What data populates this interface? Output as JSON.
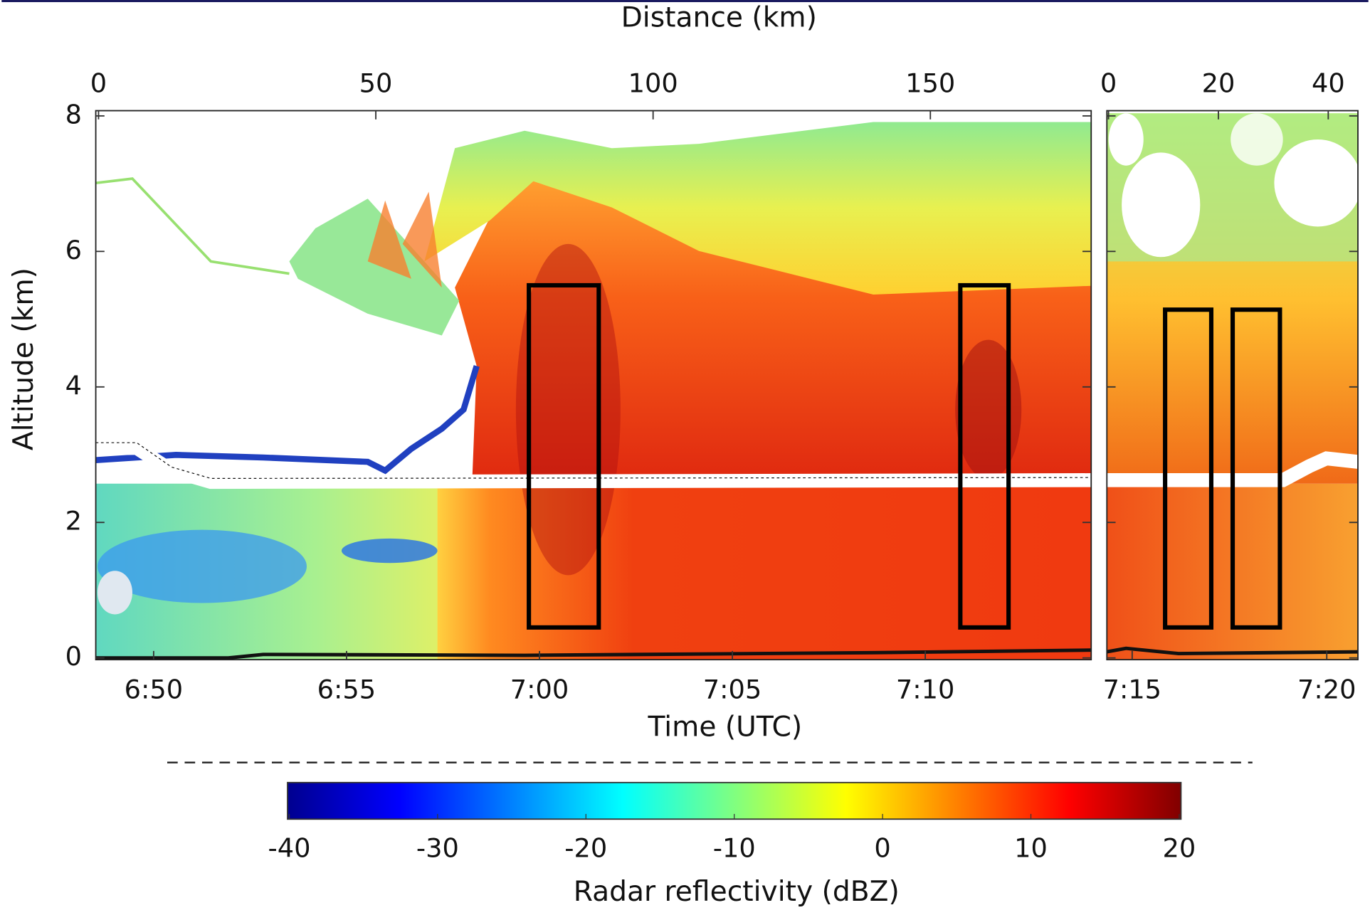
{
  "chart_data": {
    "type": "radar-curtain",
    "x2_label": "Distance (km)",
    "x_label": "Time (UTC)",
    "y_label": "Altitude (km)",
    "ylim": [
      0,
      8
    ],
    "yticks": [
      0,
      2,
      4,
      6,
      8
    ],
    "panels": [
      {
        "distance_lim": [
          -0.5,
          179
        ],
        "distance_ticks": [
          0,
          50,
          100,
          150
        ],
        "time_lim": [
          408.5,
          434.3
        ],
        "time_ticks": [
          {
            "value": 410,
            "label": "6:50"
          },
          {
            "value": 415,
            "label": "6:55"
          },
          {
            "value": 420,
            "label": "7:00"
          },
          {
            "value": 425,
            "label": "7:05"
          },
          {
            "value": 430,
            "label": "7:10"
          }
        ],
        "boxes": [
          {
            "x": [
              77.6,
              90.2
            ],
            "y": [
              0.45,
              5.5
            ]
          },
          {
            "x": [
              155.4,
              164.1
            ],
            "y": [
              0.45,
              5.5
            ]
          }
        ]
      },
      {
        "distance_lim": [
          -0.3,
          45.4
        ],
        "distance_ticks": [
          0,
          20,
          40
        ],
        "time_lim": [
          434.35,
          440.8
        ],
        "time_ticks": [
          {
            "value": 435,
            "label": "7:15"
          },
          {
            "value": 440,
            "label": "7:20"
          }
        ],
        "boxes": [
          {
            "x": [
              10.3,
              18.7
            ],
            "y": [
              0.45,
              5.14
            ]
          },
          {
            "x": [
              22.6,
              31.2
            ],
            "y": [
              0.45,
              5.14
            ]
          }
        ]
      }
    ],
    "box_color": "#000000",
    "colorbar": {
      "label": "Radar reflectivity (dBZ)",
      "lim": [
        -40,
        20
      ],
      "ticks": [
        -40,
        -30,
        -20,
        -10,
        0,
        10,
        20
      ],
      "colors": [
        "#00008f",
        "#0000ff",
        "#0080ff",
        "#00ffff",
        "#80ff80",
        "#ffff00",
        "#ff8000",
        "#ff0000",
        "#800000"
      ]
    }
  }
}
